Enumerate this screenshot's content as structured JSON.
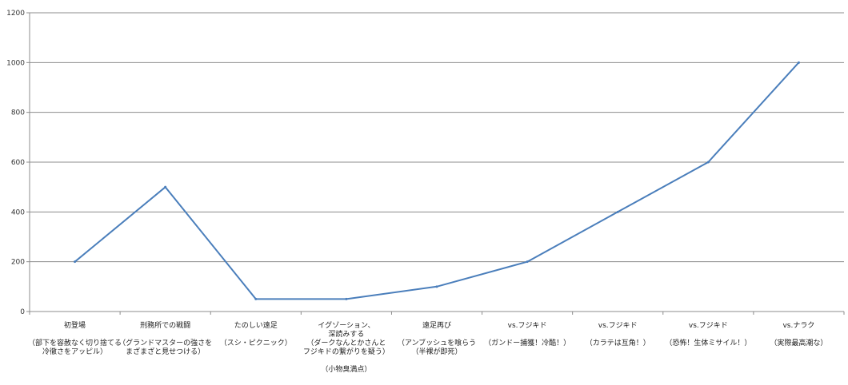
{
  "chart_data": {
    "type": "line",
    "title": "",
    "xlabel": "",
    "ylabel": "",
    "ylim": [
      0,
      1200
    ],
    "yticks": [
      0,
      200,
      400,
      600,
      800,
      1000,
      1200
    ],
    "grid": true,
    "legend": "none",
    "line_color": "#4a7ebb",
    "categories": [
      "初登場\n\n（部下を容赦なく切り捨てる\n冷徹さをアッピル）",
      "刑務所での戦闘\n\n（グランドマスターの強さを\nまざまざと見せつける）",
      "たのしい遠足\n\n（スシ・ピクニック）",
      "イグゾーション、\n深読みする\n（ダークなんとかさんと\nフジキドの繋がりを疑う）\n\n（小物臭満点）",
      "遠足再び\n\n（アンブッシュを喰らう\n（半裸が即死）",
      "vs.フジキド\n\n（ガンドー捕獲！冷酷！）",
      "vs.フジキド\n\n（カラテは互角！）",
      "vs.フジキド\n\n（恐怖！生体ミサイル！）",
      "vs.ナラク\n\n（実際最高潮な）"
    ],
    "series": [
      {
        "values": [
          200,
          500,
          50,
          50,
          100,
          200,
          400,
          600,
          1000
        ]
      }
    ]
  }
}
